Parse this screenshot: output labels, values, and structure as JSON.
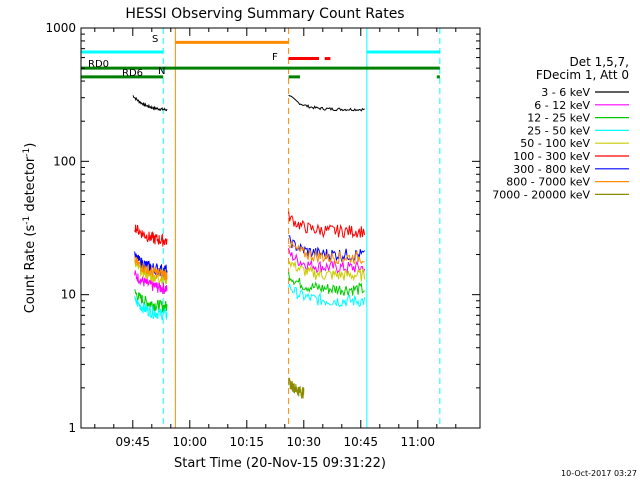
{
  "chart_data": {
    "type": "line",
    "title": "HESSI Observing Summary Count Rates",
    "xlabel": "Start Time (20-Nov-15 09:31:22)",
    "ylabel": "Count Rate (s",
    "ylabel_sup": "-1",
    "ylabel_tail": " detector",
    "ylabel_close": ")",
    "yscale": "log",
    "ylim": [
      1,
      1000
    ],
    "xlim_minutes": [
      571.37,
      676.37
    ],
    "yticks": [
      {
        "value": 1,
        "label": "1"
      },
      {
        "value": 10,
        "label": "10"
      },
      {
        "value": 100,
        "label": "100"
      },
      {
        "value": 1000,
        "label": "1000"
      }
    ],
    "xticks": [
      {
        "minute": 585,
        "label": "09:45"
      },
      {
        "minute": 600,
        "label": "10:00"
      },
      {
        "minute": 615,
        "label": "10:15"
      },
      {
        "minute": 630,
        "label": "10:30"
      },
      {
        "minute": 645,
        "label": "10:45"
      },
      {
        "minute": 660,
        "label": "11:00"
      }
    ],
    "legend_header": [
      "Det 1,5,7,",
      "FDecim 1, Att 0"
    ],
    "series": [
      {
        "name": "3 - 6 keV",
        "color": "#000000",
        "segments": [
          [
            585.0,
            594.0,
            240
          ],
          [
            626.0,
            646.0,
            245
          ]
        ]
      },
      {
        "name": "6 - 12 keV",
        "color": "#ff00ff",
        "segments": [
          [
            585.5,
            594.0,
            11
          ],
          [
            626.0,
            646.0,
            16
          ]
        ]
      },
      {
        "name": "12 - 25 keV",
        "color": "#00cc00",
        "segments": [
          [
            585.5,
            594.0,
            8
          ],
          [
            626.0,
            646.0,
            11
          ]
        ]
      },
      {
        "name": "25 - 50 keV",
        "color": "#00ffff",
        "segments": [
          [
            585.5,
            594.0,
            7
          ],
          [
            626.0,
            646.0,
            9
          ]
        ]
      },
      {
        "name": "50 - 100 keV",
        "color": "#cccc00",
        "segments": [
          [
            585.5,
            594.0,
            13
          ],
          [
            626.0,
            646.0,
            14
          ]
        ]
      },
      {
        "name": "100 - 300 keV",
        "color": "#ff0000",
        "segments": [
          [
            585.5,
            594.0,
            25
          ],
          [
            626.0,
            646.0,
            30
          ]
        ]
      },
      {
        "name": "300 - 800 keV",
        "color": "#0000ff",
        "segments": [
          [
            585.5,
            594.0,
            15
          ],
          [
            626.0,
            646.0,
            20
          ]
        ]
      },
      {
        "name": "800 - 7000 keV",
        "color": "#ff8c00",
        "segments": [
          [
            585.5,
            594.0,
            14
          ],
          [
            626.0,
            646.0,
            19
          ]
        ]
      },
      {
        "name": "7000 - 20000 keV",
        "color": "#8b8b00",
        "segments": [
          [
            626.0,
            630.0,
            1.7
          ]
        ]
      }
    ],
    "annotations": [
      {
        "label": "S",
        "color": "#ff8c00"
      },
      {
        "label": "N",
        "color": "#00ffff"
      },
      {
        "label": "F",
        "color": "#ff0000"
      },
      {
        "label": "RD0",
        "color": "#008000"
      },
      {
        "label": "RD6",
        "color": "#008000"
      }
    ],
    "verticals": [
      {
        "minute": 593.0,
        "color": "#00ffff",
        "dashed": true
      },
      {
        "minute": 596.2,
        "color": "#ff8c00",
        "dashed": false
      },
      {
        "minute": 626.0,
        "color": "#ff8c00",
        "dashed": true
      },
      {
        "minute": 646.6,
        "color": "#00ffff",
        "dashed": false
      },
      {
        "minute": 665.8,
        "color": "#00ffff",
        "dashed": true
      }
    ],
    "flag_bars": [
      {
        "color": "#00ffff",
        "y": 660,
        "from": 571.37,
        "to": 593.0
      },
      {
        "color": "#00ffff",
        "y": 660,
        "from": 646.6,
        "to": 665.8
      },
      {
        "color": "#ff8c00",
        "y": 780,
        "from": 596.2,
        "to": 626.0
      },
      {
        "color": "#008000",
        "y": 500,
        "from": 571.37,
        "to": 665.8
      },
      {
        "color": "#008000",
        "y": 430,
        "from": 571.37,
        "to": 593.0
      },
      {
        "color": "#008000",
        "y": 430,
        "from": 626.0,
        "to": 629.0
      },
      {
        "color": "#008000",
        "y": 430,
        "from": 665.0,
        "to": 665.8
      },
      {
        "color": "#ff0000",
        "y": 590,
        "from": 626.0,
        "to": 634.0
      },
      {
        "color": "#ff0000",
        "y": 590,
        "from": 635.5,
        "to": 637.0
      }
    ]
  },
  "footer": {
    "timestamp": "10-Oct-2017 03:27"
  }
}
